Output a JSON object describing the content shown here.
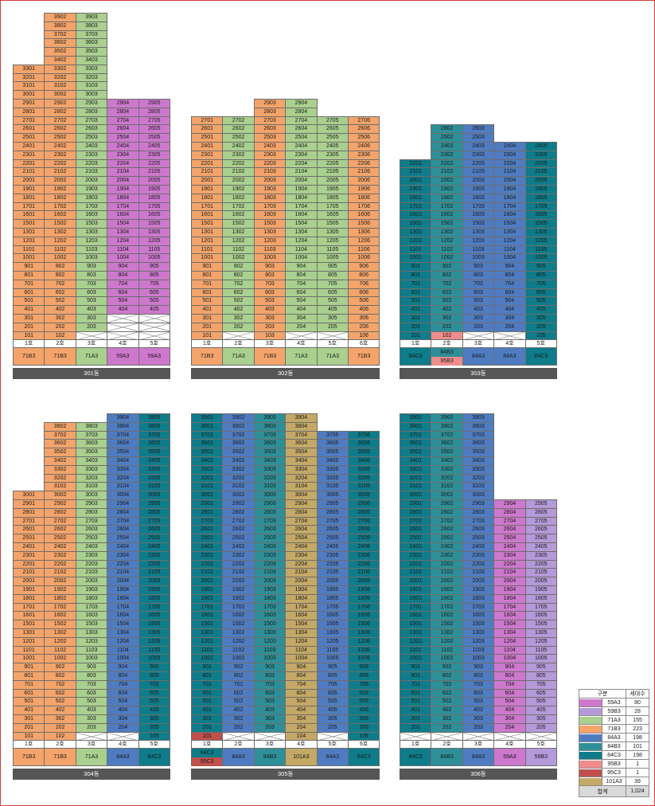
{
  "colors": {
    "59A3": "#cd78cd",
    "59B3": "#b49ad8",
    "71A3": "#a9d08e",
    "71B3": "#f4a46a",
    "84A3": "#4f7cc1",
    "84B3": "#2e8f98",
    "84C3": "#0e7c8a",
    "95B3": "#f08c8c",
    "95C3": "#c0504d",
    "101A3": "#c4a866"
  },
  "buildings": [
    {
      "name": "301동",
      "columns": [
        {
          "label": "1호",
          "type": "71B3",
          "top": 33,
          "min": 1,
          "empty": []
        },
        {
          "label": "2호",
          "type": "71B3",
          "top": 39,
          "min": 1,
          "empty": []
        },
        {
          "label": "3호",
          "type": "71A3",
          "top": 39,
          "min": 1,
          "empty": [
            1
          ]
        },
        {
          "label": "4호",
          "type": "59A3",
          "top": 29,
          "min": 4,
          "empty": [
            1,
            2,
            3
          ]
        },
        {
          "label": "5호",
          "type": "59A3",
          "top": 29,
          "min": 4,
          "empty": [
            1,
            2,
            3
          ]
        }
      ],
      "override": {},
      "type_row": [
        [
          "71B3"
        ],
        [
          "71B3"
        ],
        [
          "71A3"
        ],
        [
          "59A3"
        ],
        [
          "59A3"
        ]
      ]
    },
    {
      "name": "302동",
      "columns": [
        {
          "label": "1호",
          "type": "71B3",
          "top": 27,
          "min": 1,
          "empty": []
        },
        {
          "label": "2호",
          "type": "71A3",
          "top": 27,
          "min": 2,
          "empty": [
            1
          ]
        },
        {
          "label": "3호",
          "type": "71B3",
          "top": 29,
          "min": 1,
          "empty": []
        },
        {
          "label": "4호",
          "type": "71A3",
          "top": 29,
          "min": 2,
          "empty": [
            1
          ]
        },
        {
          "label": "5호",
          "type": "71A3",
          "top": 27,
          "min": 2,
          "empty": [
            1
          ]
        },
        {
          "label": "6호",
          "type": "71B3",
          "top": 27,
          "min": 1,
          "empty": []
        }
      ],
      "override": {},
      "type_row": [
        [
          "71B3"
        ],
        [
          "71A3"
        ],
        [
          "71B3"
        ],
        [
          "71A3"
        ],
        [
          "71A3"
        ],
        [
          "71B3"
        ]
      ]
    },
    {
      "name": "303동",
      "columns": [
        {
          "label": "1호",
          "type": "84C3",
          "top": 22,
          "min": 1,
          "empty": []
        },
        {
          "label": "2호",
          "type": "84B3",
          "top": 26,
          "min": 1,
          "empty": []
        },
        {
          "label": "3호",
          "type": "84A3",
          "top": 26,
          "min": 2,
          "empty": [
            1
          ]
        },
        {
          "label": "4호",
          "type": "84A3",
          "top": 24,
          "min": 2,
          "empty": [
            1
          ]
        },
        {
          "label": "5호",
          "type": "84C3",
          "top": 24,
          "min": 1,
          "empty": []
        }
      ],
      "override": {
        "1-1": "95B3"
      },
      "type_row": [
        [
          "84C3"
        ],
        [
          "84B3",
          "95B3"
        ],
        [
          "84A3"
        ],
        [
          "84A3"
        ],
        [
          "84C3"
        ]
      ]
    },
    {
      "name": "304동",
      "columns": [
        {
          "label": "1호",
          "type": "71B3",
          "top": 30,
          "min": 1,
          "empty": []
        },
        {
          "label": "2호",
          "type": "71B3",
          "top": 38,
          "min": 1,
          "empty": []
        },
        {
          "label": "3호",
          "type": "71A3",
          "top": 38,
          "min": 2,
          "empty": [
            1
          ]
        },
        {
          "label": "4호",
          "type": "84A3",
          "top": 39,
          "min": 2,
          "empty": [
            1
          ]
        },
        {
          "label": "5호",
          "type": "84C3",
          "top": 39,
          "min": 1,
          "empty": []
        }
      ],
      "override": {},
      "type_row": [
        [
          "71B3"
        ],
        [
          "71B3"
        ],
        [
          "71A3"
        ],
        [
          "84A3"
        ],
        [
          "84C3"
        ]
      ]
    },
    {
      "name": "305동",
      "columns": [
        {
          "label": "1호",
          "type": "84C3",
          "top": 39,
          "min": 1,
          "empty": []
        },
        {
          "label": "2호",
          "type": "84A3",
          "top": 39,
          "min": 2,
          "empty": [
            1
          ]
        },
        {
          "label": "3호",
          "type": "84B3",
          "top": 39,
          "min": 2,
          "empty": [
            1
          ]
        },
        {
          "label": "4호",
          "type": "101A3",
          "top": 39,
          "min": 1,
          "empty": []
        },
        {
          "label": "5호",
          "type": "84A3",
          "top": 37,
          "min": 2,
          "empty": [
            1
          ]
        },
        {
          "label": "6호",
          "type": "84C3",
          "top": 37,
          "min": 1,
          "empty": []
        }
      ],
      "override": {
        "0-1": "95C3"
      },
      "type_row": [
        [
          "84C3",
          "95C3"
        ],
        [
          "84A3"
        ],
        [
          "84B3"
        ],
        [
          "101A3"
        ],
        [
          "84A3"
        ],
        [
          "84C3"
        ]
      ]
    },
    {
      "name": "306동",
      "columns": [
        {
          "label": "1호",
          "type": "84C3",
          "top": 39,
          "min": 2,
          "empty": [
            1
          ]
        },
        {
          "label": "2호",
          "type": "84B3",
          "top": 39,
          "min": 2,
          "empty": [
            1
          ]
        },
        {
          "label": "3호",
          "type": "84A3",
          "top": 39,
          "min": 2,
          "empty": [
            1
          ]
        },
        {
          "label": "4호",
          "type": "59A3",
          "top": 29,
          "min": 2,
          "empty": [
            1
          ]
        },
        {
          "label": "5호",
          "type": "59B3",
          "top": 29,
          "min": 2,
          "empty": [
            1
          ]
        }
      ],
      "override": {},
      "type_row": [
        [
          "84C3"
        ],
        [
          "84B3"
        ],
        [
          "84A3"
        ],
        [
          "59A3"
        ],
        [
          "59B3"
        ]
      ]
    }
  ],
  "floor_sequence": [
    1,
    2,
    3,
    4,
    5,
    6,
    7,
    8,
    9,
    10,
    11,
    12,
    13,
    15,
    16,
    17,
    18,
    19,
    20,
    21,
    22,
    23,
    24,
    25,
    26,
    27,
    28,
    29,
    30,
    31,
    32,
    33,
    34,
    35,
    36,
    37,
    38,
    39
  ],
  "legend": {
    "header": [
      "구분",
      "세대수"
    ],
    "rows": [
      {
        "type": "59A3",
        "count": "80"
      },
      {
        "type": "59B3",
        "count": "28"
      },
      {
        "type": "71A3",
        "count": "155"
      },
      {
        "type": "71B3",
        "count": "223"
      },
      {
        "type": "84A3",
        "count": "198"
      },
      {
        "type": "84B3",
        "count": "101"
      },
      {
        "type": "84C3",
        "count": "198"
      },
      {
        "type": "95B3",
        "count": "1"
      },
      {
        "type": "95C3",
        "count": "1"
      },
      {
        "type": "101A3",
        "count": "39"
      }
    ],
    "total_label": "합계",
    "total_count": "1,024"
  }
}
